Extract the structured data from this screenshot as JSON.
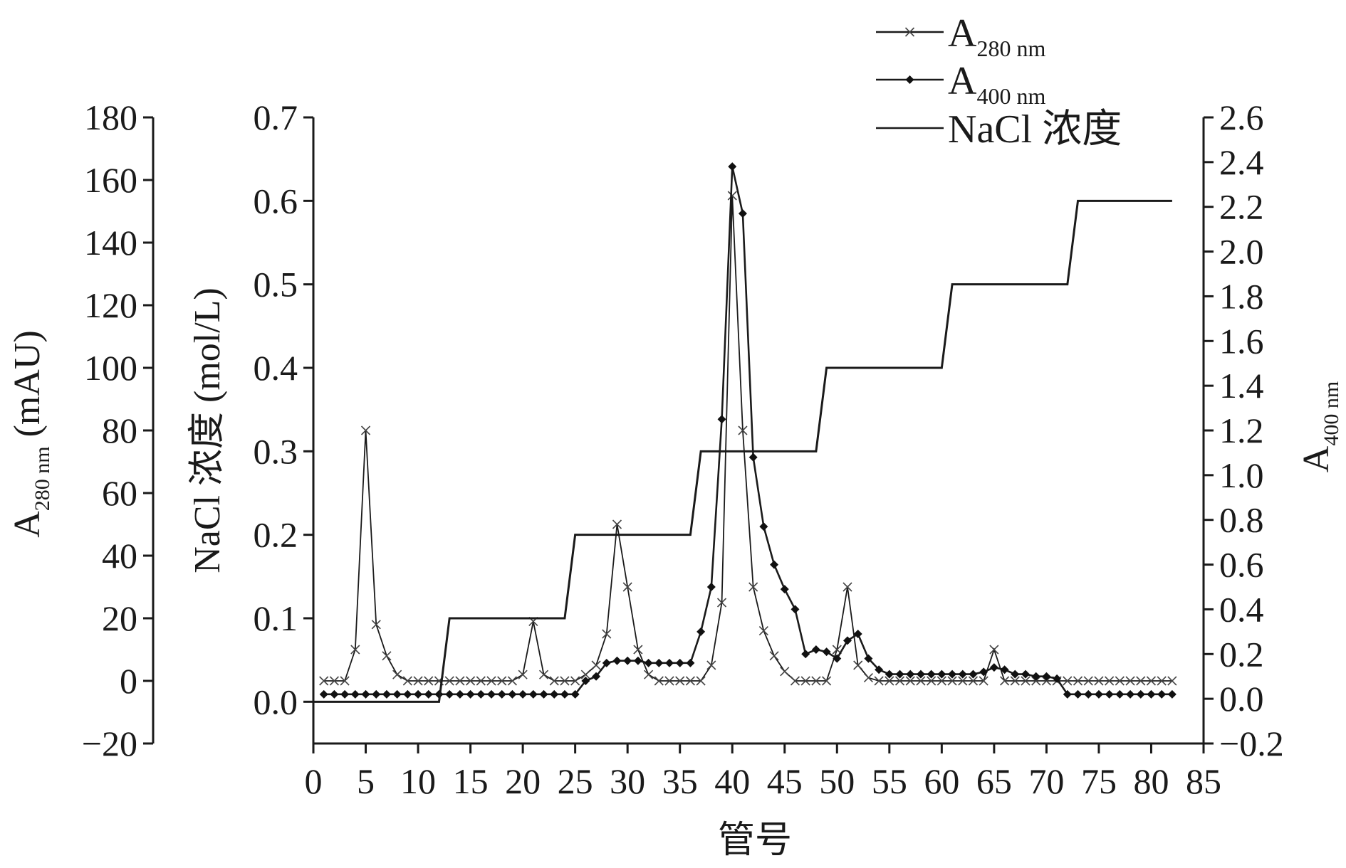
{
  "chart_data": {
    "type": "line",
    "xlabel": "管号",
    "xlim": [
      0,
      85
    ],
    "xticks": [
      0,
      5,
      10,
      15,
      20,
      25,
      30,
      35,
      40,
      45,
      50,
      55,
      60,
      65,
      70,
      75,
      80,
      85
    ],
    "axes": {
      "a280": {
        "label_main": "A",
        "label_sub": "280 nm",
        "label_unit": " (mAU)",
        "lim": [
          -20,
          180
        ],
        "ticks": [
          -20,
          0,
          20,
          40,
          60,
          80,
          100,
          120,
          140,
          160,
          180
        ],
        "tick_labels": [
          "−20",
          "0",
          "20",
          "40",
          "60",
          "80",
          "100",
          "120",
          "140",
          "160",
          "180"
        ]
      },
      "nacl": {
        "label": "NaCl 浓度 (mol/L)",
        "lim": [
          -0.05,
          0.7
        ],
        "ticks": [
          0.0,
          0.1,
          0.2,
          0.3,
          0.4,
          0.5,
          0.6,
          0.7
        ],
        "tick_labels": [
          "0.0",
          "0.1",
          "0.2",
          "0.3",
          "0.4",
          "0.5",
          "0.6",
          "0.7"
        ]
      },
      "a400": {
        "label_main": "A",
        "label_sub": "400 nm",
        "lim": [
          -0.2,
          2.6
        ],
        "ticks": [
          -0.2,
          0.0,
          0.2,
          0.4,
          0.6,
          0.8,
          1.0,
          1.2,
          1.4,
          1.6,
          1.8,
          2.0,
          2.2,
          2.4,
          2.6
        ],
        "tick_labels": [
          "−0.2",
          "0.0",
          "0.2",
          "0.4",
          "0.6",
          "0.8",
          "1.0",
          "1.2",
          "1.4",
          "1.6",
          "1.8",
          "2.0",
          "2.2",
          "2.4",
          "2.6"
        ]
      }
    },
    "legend": {
      "position": "top-right",
      "entries": [
        {
          "main": "A",
          "sub": "280 nm",
          "marker": "x"
        },
        {
          "main": "A",
          "sub": "400 nm",
          "marker": "diamond"
        },
        {
          "main": "NaCl 浓度",
          "sub": "",
          "marker": "none"
        }
      ]
    },
    "series": [
      {
        "axis": "a280",
        "marker": "x",
        "color": "#1a1a1a",
        "x": [
          1,
          2,
          3,
          4,
          5,
          6,
          7,
          8,
          9,
          10,
          11,
          12,
          13,
          14,
          15,
          16,
          17,
          18,
          19,
          20,
          21,
          22,
          23,
          24,
          25,
          26,
          27,
          28,
          29,
          30,
          31,
          32,
          33,
          34,
          35,
          36,
          37,
          38,
          39,
          40,
          41,
          42,
          43,
          44,
          45,
          46,
          47,
          48,
          49,
          50,
          51,
          52,
          53,
          54,
          55,
          56,
          57,
          58,
          59,
          60,
          61,
          62,
          63,
          64,
          65,
          66,
          67,
          68,
          69,
          70,
          71,
          72,
          73,
          74,
          75,
          76,
          77,
          78,
          79,
          80,
          81,
          82
        ],
        "values": [
          0,
          0,
          0,
          10,
          80,
          18,
          8,
          2,
          0,
          0,
          0,
          0,
          0,
          0,
          0,
          0,
          0,
          0,
          0,
          2,
          19,
          2,
          0,
          0,
          0,
          2,
          5,
          15,
          50,
          30,
          10,
          2,
          0,
          0,
          0,
          0,
          0,
          5,
          25,
          155,
          80,
          30,
          16,
          8,
          3,
          0,
          0,
          0,
          0,
          10,
          30,
          5,
          1,
          0,
          0,
          0,
          0,
          0,
          0,
          0,
          0,
          0,
          0,
          0,
          10,
          0,
          0,
          0,
          0,
          0,
          0,
          0,
          0,
          0,
          0,
          0,
          0,
          0,
          0,
          0,
          0,
          0
        ]
      },
      {
        "axis": "a400",
        "marker": "diamond",
        "color": "#1a1a1a",
        "x": [
          1,
          2,
          3,
          4,
          5,
          6,
          7,
          8,
          9,
          10,
          11,
          12,
          13,
          14,
          15,
          16,
          17,
          18,
          19,
          20,
          21,
          22,
          23,
          24,
          25,
          26,
          27,
          28,
          29,
          30,
          31,
          32,
          33,
          34,
          35,
          36,
          37,
          38,
          39,
          40,
          41,
          42,
          43,
          44,
          45,
          46,
          47,
          48,
          49,
          50,
          51,
          52,
          53,
          54,
          55,
          56,
          57,
          58,
          59,
          60,
          61,
          62,
          63,
          64,
          65,
          66,
          67,
          68,
          69,
          70,
          71,
          72,
          73,
          74,
          75,
          76,
          77,
          78,
          79,
          80,
          81,
          82
        ],
        "values": [
          0.02,
          0.02,
          0.02,
          0.02,
          0.02,
          0.02,
          0.02,
          0.02,
          0.02,
          0.02,
          0.02,
          0.02,
          0.02,
          0.02,
          0.02,
          0.02,
          0.02,
          0.02,
          0.02,
          0.02,
          0.02,
          0.02,
          0.02,
          0.02,
          0.02,
          0.08,
          0.1,
          0.16,
          0.17,
          0.17,
          0.17,
          0.16,
          0.16,
          0.16,
          0.16,
          0.16,
          0.3,
          0.5,
          1.25,
          2.38,
          2.17,
          1.08,
          0.77,
          0.6,
          0.49,
          0.4,
          0.2,
          0.22,
          0.21,
          0.18,
          0.26,
          0.29,
          0.18,
          0.13,
          0.11,
          0.11,
          0.11,
          0.11,
          0.11,
          0.11,
          0.11,
          0.11,
          0.11,
          0.12,
          0.14,
          0.13,
          0.11,
          0.11,
          0.1,
          0.1,
          0.09,
          0.02,
          0.02,
          0.02,
          0.02,
          0.02,
          0.02,
          0.02,
          0.02,
          0.02,
          0.02,
          0.02
        ]
      },
      {
        "axis": "nacl",
        "marker": "none",
        "color": "#1a1a1a",
        "step_x": [
          0,
          12,
          13,
          24,
          25,
          36,
          37,
          48,
          49,
          60,
          61,
          72,
          73,
          82
        ],
        "values": [
          0,
          0,
          0.1,
          0.1,
          0.2,
          0.2,
          0.3,
          0.3,
          0.4,
          0.4,
          0.5,
          0.5,
          0.6,
          0.6
        ]
      }
    ]
  }
}
